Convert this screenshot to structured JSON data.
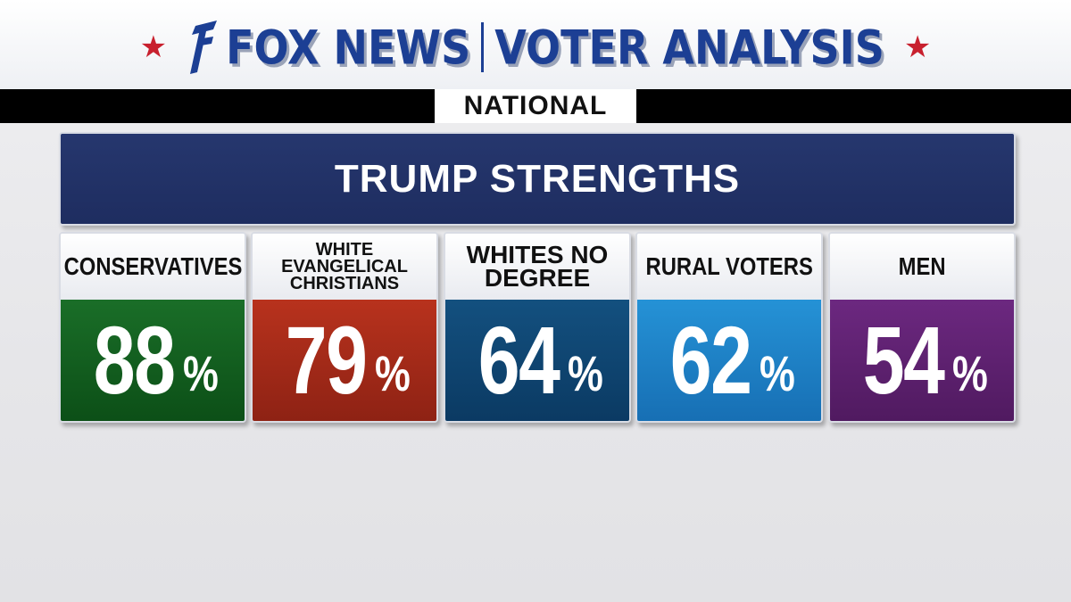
{
  "header": {
    "brand": "FOX NEWS",
    "section": "VOTER ANALYSIS",
    "region": "NATIONAL"
  },
  "title": "TRUMP STRENGTHS",
  "cards": [
    {
      "label": "CONSERVATIVES",
      "value": "88",
      "unit": "%",
      "color": "#0f5a1c"
    },
    {
      "label": "WHITE EVANGELICAL CHRISTIANS",
      "value": "79",
      "unit": "%",
      "color": "#a3281a"
    },
    {
      "label": "WHITES NO DEGREE",
      "value": "64",
      "unit": "%",
      "color": "#0e4370"
    },
    {
      "label": "RURAL VOTERS",
      "value": "62",
      "unit": "%",
      "color": "#1d82c8"
    },
    {
      "label": "MEN",
      "value": "54",
      "unit": "%",
      "color": "#5e1f6e"
    }
  ],
  "colors": {
    "brand_blue": "#1c3f94",
    "star_red": "#c8202e",
    "title_navy": "#26376e"
  },
  "icons": [
    "star-icon",
    "fox-slash-logo-icon"
  ]
}
